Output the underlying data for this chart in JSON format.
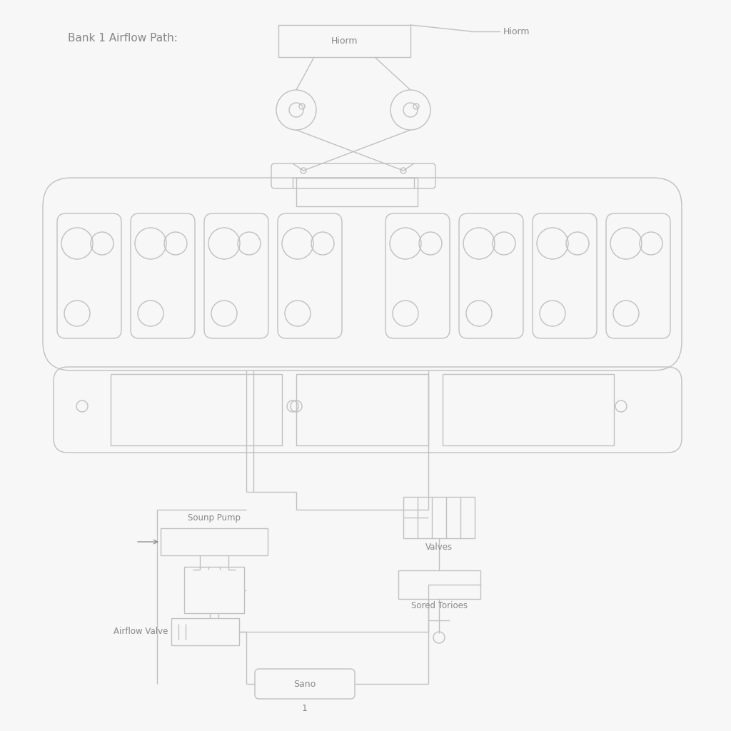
{
  "subtitle": "Bank 1 Airflow Path:",
  "page_number": "1",
  "bg_color": "#f7f7f7",
  "line_color": "#c0c0c0",
  "text_color": "#888888",
  "label_color": "#999999",
  "labels": {
    "hiorm": "Hiorm",
    "sounp_pump": "Sounp Pump",
    "airflow_valve": "Airflow Valve",
    "valves": "Valves",
    "sored_torioes": "Sored Torioes",
    "sano": "Sano"
  }
}
